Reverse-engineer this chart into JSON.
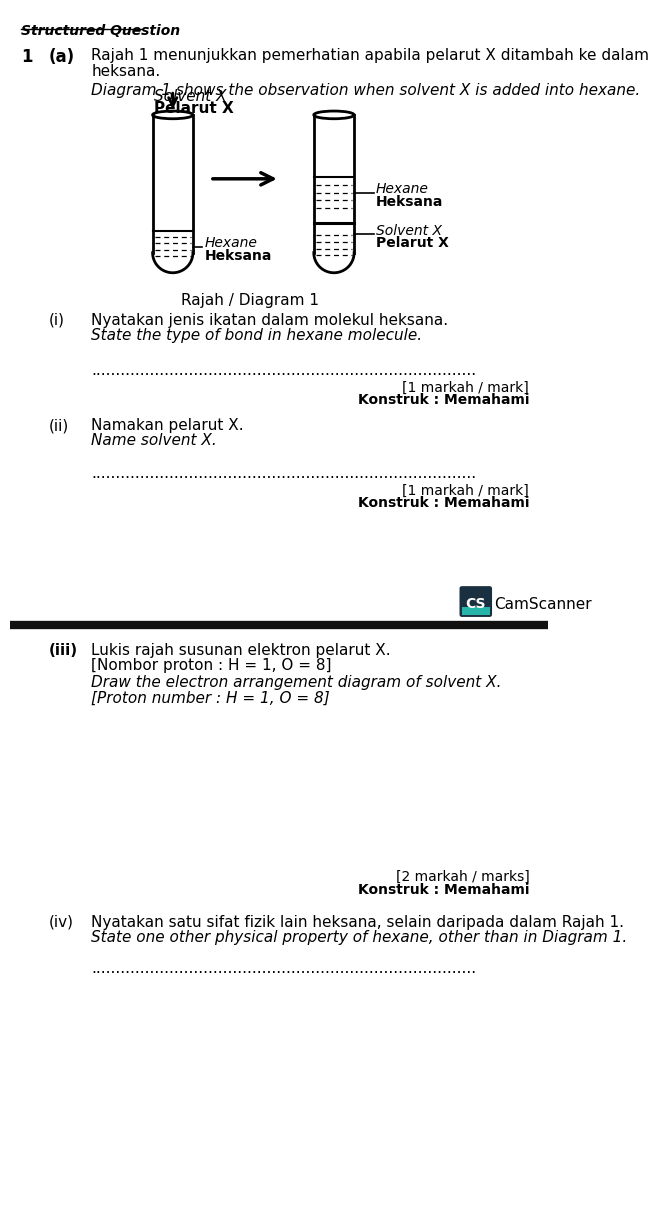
{
  "bg_color": "#ffffff",
  "page_width": 6.94,
  "page_height": 15.67,
  "header_text": "Structured Question",
  "q1_num": "1",
  "q1_letter": "(a)",
  "q1_malay_line1": "Rajah 1 menunjukkan pemerhatian apabila pelarut X ditambah ke dalam",
  "q1_malay_line2": "heksana.",
  "q1_english": "Diagram 1 shows the observation when solvent X is added into hexane.",
  "label_pelarut_bold": "Pelarut X",
  "label_pelarut_italic": "Solvent X",
  "label_heksana1_bold": "Heksana",
  "label_heksana1_italic": "Hexane",
  "label_heksana2_bold": "Heksana",
  "label_heksana2_italic": "Hexane",
  "label_pelarutX2_bold": "Pelarut X",
  "label_pelarutX2_italic": "Solvent X",
  "diagram_caption": "Rajah / Diagram 1",
  "qi_num": "(i)",
  "qi_malay": "Nyatakan jenis ikatan dalam molekul heksana.",
  "qi_english": "State the type of bond in hexane molecule.",
  "qi_dots": "...............................................................................",
  "qi_mark": "[1 markah / mark]",
  "qi_konstruk": "Konstruk : Memahami",
  "qii_num": "(ii)",
  "qii_malay": "Namakan pelarut X.",
  "qii_english": "Name solvent X.",
  "qii_dots": "...............................................................................",
  "qii_mark": "[1 markah / mark]",
  "qii_konstruk": "Konstruk : Memahami",
  "camscanner_text": "CamScanner",
  "qiii_num": "(iii)",
  "qiii_malay": "Lukis rajah susunan elektron pelarut X.",
  "qiii_bracket_malay": "[Nombor proton : H = 1, O = 8]",
  "qiii_english": "Draw the electron arrangement diagram of solvent X.",
  "qiii_bracket_english": "[Proton number : H = 1, O = 8]",
  "qiii_mark": "[2 markah / marks]",
  "qiii_konstruk": "Konstruk : Memahami",
  "qiv_num": "(iv)",
  "qiv_malay": "Nyatakan satu sifat fizik lain heksana, selain daripada dalam Rajah 1.",
  "qiv_english": "State one other physical property of hexane, other than in Diagram 1.",
  "qiv_dots": "...............................................................................",
  "text_color": "#000000",
  "line_color": "#000000"
}
